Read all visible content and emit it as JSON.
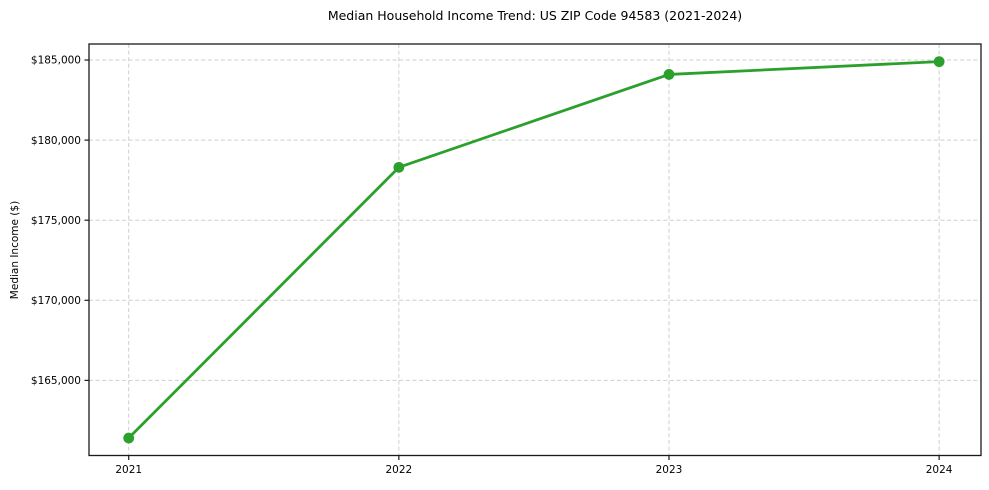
{
  "chart_data": {
    "type": "line",
    "title": "Median Household Income Trend: US ZIP Code 94583 (2021-2024)",
    "xlabel": "",
    "ylabel": "Median Income ($)",
    "x": [
      2021,
      2022,
      2023,
      2024
    ],
    "series": [
      {
        "name": "Median household income",
        "values": [
          161400,
          178300,
          184100,
          184900
        ]
      }
    ],
    "xticks": {
      "values": [
        2021,
        2022,
        2023,
        2024
      ],
      "labels": [
        "2021",
        "2022",
        "2023",
        "2024"
      ]
    },
    "yticks": {
      "values": [
        165000,
        170000,
        175000,
        180000,
        185000
      ],
      "labels": [
        "$165,000",
        "$170,000",
        "$175,000",
        "$180,000",
        "$185,000"
      ]
    },
    "xlim": [
      2020.853,
      2024.155
    ],
    "ylim": [
      160310,
      186000
    ],
    "grid": true,
    "grid_style": "dashed",
    "legend": false,
    "colors": {
      "line": "#2ca02c",
      "marker": "#2ca02c",
      "grid": "#c9c9c9",
      "spine": "#1a1a1a",
      "background": "#ffffff",
      "text": "#000000"
    },
    "marker": "o",
    "marker_radius": 5.4,
    "line_width": 2.8
  }
}
